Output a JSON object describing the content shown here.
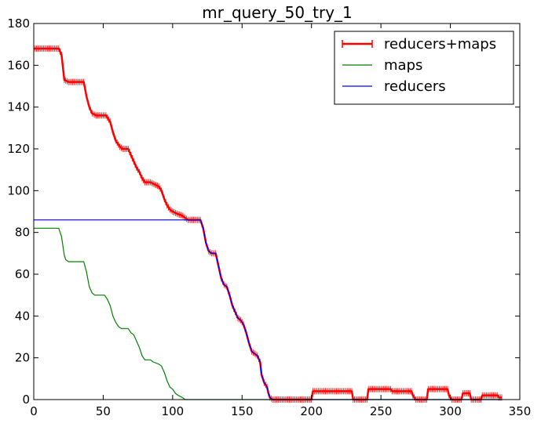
{
  "chart_data": {
    "type": "line",
    "title": "mr_query_50_try_1",
    "xlabel": "",
    "ylabel": "",
    "xlim": [
      0,
      350
    ],
    "ylim": [
      0,
      180
    ],
    "x_ticks": [
      0,
      50,
      100,
      150,
      200,
      250,
      300,
      350
    ],
    "y_ticks": [
      0,
      20,
      40,
      60,
      80,
      100,
      120,
      140,
      160,
      180
    ],
    "grid": false,
    "legend_position": "top-right",
    "series": [
      {
        "name": "reducers+maps",
        "color": "#ff0000",
        "marker": "vertical-tick",
        "points": [
          [
            0,
            168
          ],
          [
            18,
            168
          ],
          [
            20,
            165
          ],
          [
            22,
            153
          ],
          [
            25,
            152
          ],
          [
            36,
            152
          ],
          [
            38,
            145
          ],
          [
            40,
            140
          ],
          [
            42,
            137
          ],
          [
            45,
            136
          ],
          [
            52,
            136
          ],
          [
            55,
            133
          ],
          [
            57,
            128
          ],
          [
            59,
            124
          ],
          [
            62,
            121
          ],
          [
            64,
            120
          ],
          [
            68,
            120
          ],
          [
            70,
            117
          ],
          [
            72,
            114
          ],
          [
            74,
            111
          ],
          [
            76,
            109
          ],
          [
            78,
            106
          ],
          [
            80,
            104
          ],
          [
            84,
            104
          ],
          [
            87,
            103
          ],
          [
            90,
            102
          ],
          [
            92,
            100
          ],
          [
            94,
            96
          ],
          [
            96,
            93
          ],
          [
            98,
            91
          ],
          [
            100,
            90
          ],
          [
            103,
            89
          ],
          [
            107,
            88
          ],
          [
            109,
            87
          ],
          [
            111,
            86
          ],
          [
            120,
            86
          ],
          [
            122,
            82
          ],
          [
            124,
            75
          ],
          [
            126,
            71
          ],
          [
            128,
            70
          ],
          [
            131,
            70
          ],
          [
            133,
            64
          ],
          [
            135,
            58
          ],
          [
            137,
            55
          ],
          [
            139,
            54
          ],
          [
            141,
            50
          ],
          [
            143,
            45
          ],
          [
            145,
            42
          ],
          [
            147,
            39
          ],
          [
            149,
            38
          ],
          [
            151,
            36
          ],
          [
            153,
            32
          ],
          [
            155,
            27
          ],
          [
            157,
            23
          ],
          [
            159,
            22
          ],
          [
            161,
            21
          ],
          [
            163,
            18
          ],
          [
            164,
            12
          ],
          [
            166,
            8
          ],
          [
            168,
            6
          ],
          [
            169,
            3
          ],
          [
            170,
            1
          ],
          [
            172,
            0
          ],
          [
            200,
            0
          ],
          [
            201,
            4
          ],
          [
            229,
            4
          ],
          [
            230,
            0
          ],
          [
            240,
            0
          ],
          [
            241,
            5
          ],
          [
            257,
            5
          ],
          [
            258,
            4
          ],
          [
            272,
            4
          ],
          [
            273,
            2
          ],
          [
            275,
            0
          ],
          [
            283,
            0
          ],
          [
            284,
            5
          ],
          [
            298,
            5
          ],
          [
            299,
            2
          ],
          [
            301,
            0
          ],
          [
            308,
            0
          ],
          [
            309,
            3
          ],
          [
            314,
            3
          ],
          [
            315,
            0
          ],
          [
            322,
            0
          ],
          [
            323,
            2
          ],
          [
            334,
            2
          ],
          [
            335,
            1
          ],
          [
            337,
            1
          ]
        ]
      },
      {
        "name": "maps",
        "color": "#008000",
        "points": [
          [
            0,
            82
          ],
          [
            18,
            82
          ],
          [
            20,
            78
          ],
          [
            22,
            69
          ],
          [
            23,
            67
          ],
          [
            25,
            66
          ],
          [
            36,
            66
          ],
          [
            38,
            61
          ],
          [
            40,
            54
          ],
          [
            42,
            51
          ],
          [
            44,
            50
          ],
          [
            51,
            50
          ],
          [
            53,
            48
          ],
          [
            55,
            45
          ],
          [
            57,
            40
          ],
          [
            59,
            37
          ],
          [
            61,
            35
          ],
          [
            63,
            34
          ],
          [
            68,
            34
          ],
          [
            70,
            32
          ],
          [
            72,
            31
          ],
          [
            74,
            28
          ],
          [
            76,
            25
          ],
          [
            78,
            21
          ],
          [
            80,
            19
          ],
          [
            84,
            19
          ],
          [
            86,
            18
          ],
          [
            90,
            17
          ],
          [
            92,
            16
          ],
          [
            94,
            13
          ],
          [
            96,
            9
          ],
          [
            98,
            6
          ],
          [
            100,
            5
          ],
          [
            102,
            3
          ],
          [
            104,
            2
          ],
          [
            107,
            1
          ],
          [
            109,
            0
          ],
          [
            110,
            0
          ],
          [
            120,
            0
          ],
          [
            122,
            0
          ],
          [
            126,
            0
          ],
          [
            337,
            0
          ]
        ]
      },
      {
        "name": "reducers",
        "color": "#0000ff",
        "points": [
          [
            0,
            86
          ],
          [
            120,
            86
          ],
          [
            122,
            82
          ],
          [
            124,
            75
          ],
          [
            126,
            71
          ],
          [
            128,
            70
          ],
          [
            131,
            70
          ],
          [
            133,
            64
          ],
          [
            135,
            58
          ],
          [
            137,
            55
          ],
          [
            139,
            54
          ],
          [
            141,
            50
          ],
          [
            143,
            45
          ],
          [
            145,
            42
          ],
          [
            147,
            39
          ],
          [
            149,
            38
          ],
          [
            151,
            36
          ],
          [
            153,
            32
          ],
          [
            155,
            27
          ],
          [
            157,
            23
          ],
          [
            159,
            22
          ],
          [
            161,
            21
          ],
          [
            163,
            18
          ],
          [
            164,
            12
          ],
          [
            166,
            8
          ],
          [
            168,
            6
          ],
          [
            169,
            3
          ],
          [
            170,
            1
          ],
          [
            172,
            0
          ],
          [
            200,
            0
          ],
          [
            201,
            0
          ],
          [
            337,
            0
          ]
        ]
      }
    ]
  }
}
